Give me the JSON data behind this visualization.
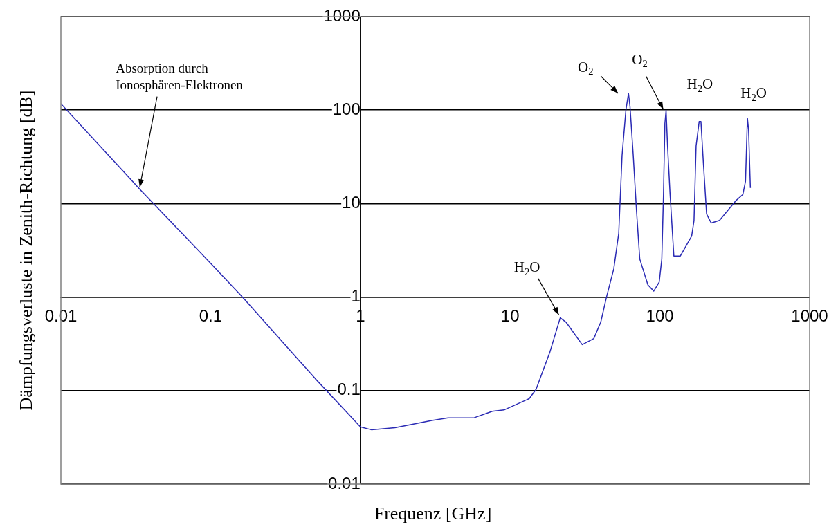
{
  "chart_data": {
    "type": "line",
    "xlabel": "Frequenz [GHz]",
    "ylabel": "Dämpfungsverluste in Zenith-Richtung [dB]",
    "series": [
      {
        "color": "#2a2ab4",
        "x": [
          0.01,
          0.034,
          0.1,
          0.163,
          0.5,
          1,
          1.19,
          1.7,
          3.0,
          3.85,
          5.7,
          7.6,
          9.1,
          13.4,
          14.9,
          18.4,
          21.6,
          23.6,
          30.3,
          36.2,
          40.3,
          44,
          49.2,
          53.1,
          54.5,
          55.9,
          59.3,
          61.7,
          63.2,
          66.4,
          69.8,
          73.4,
          83.2,
          91,
          99,
          103,
          105.7,
          108,
          110,
          112.5,
          117,
          124,
          137,
          163,
          169,
          174.5,
          183,
          188,
          195,
          205,
          220,
          250,
          321,
          358,
          373,
          384,
          391,
          402
        ],
        "values": [
          117,
          14,
          2.3,
          1,
          0.134,
          0.041,
          0.038,
          0.04,
          0.048,
          0.051,
          0.051,
          0.06,
          0.062,
          0.082,
          0.103,
          0.256,
          0.6,
          0.54,
          0.31,
          0.36,
          0.54,
          1,
          2,
          4.8,
          12.5,
          32.6,
          100,
          151,
          108,
          32.6,
          8.4,
          2.55,
          1.35,
          1.16,
          1.45,
          2.55,
          12.5,
          72,
          100,
          41.5,
          12.5,
          2.75,
          2.75,
          4.5,
          6.6,
          41.5,
          75.5,
          75.5,
          27.9,
          7.76,
          6.2,
          6.6,
          10.7,
          12.5,
          17.3,
          82,
          62,
          14.7
        ]
      }
    ],
    "log": "xy",
    "xlim": [
      0.01,
      1000
    ],
    "ylim": [
      0.01,
      1000
    ],
    "xticks": [
      0.01,
      0.1,
      1,
      10,
      100,
      1000
    ],
    "yticks": [
      0.01,
      0.1,
      1,
      10,
      100,
      1000
    ],
    "grid": "y",
    "marker": "none",
    "line_style": "solid",
    "annotations": [
      {
        "text": "Absorption durch Ionosphären-Elektronen",
        "x": 0.034,
        "y": 14
      },
      {
        "text": "H$_{2}$O",
        "x": 21.6,
        "y": 0.6
      },
      {
        "text": "O$_{2}$",
        "x": 61.7,
        "y": 151
      },
      {
        "text": "O$_{2}$",
        "x": 110,
        "y": 100
      },
      {
        "text": "H$_{2}$O",
        "x": 185,
        "y": 75.5
      },
      {
        "text": "H$_{2}$O",
        "x": 384,
        "y": 82
      }
    ]
  }
}
